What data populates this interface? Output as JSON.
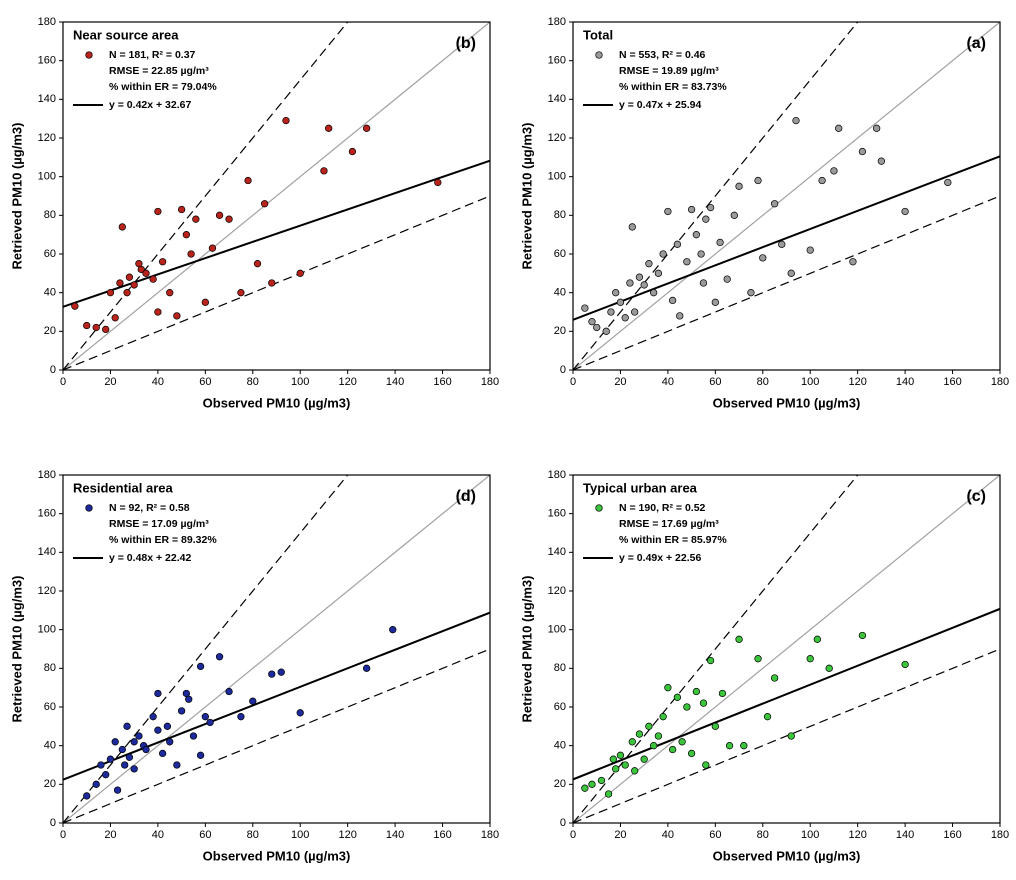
{
  "chart_data": [
    {
      "type": "scatter",
      "title": "Near source area",
      "panel_label": "(b)",
      "xlabel": "Observed PM10 (µg/m3)",
      "ylabel": "Retrieved PM10 (µg/m3)",
      "xlim": [
        0,
        180
      ],
      "ylim": [
        0,
        180
      ],
      "xticks": [
        0,
        20,
        40,
        60,
        80,
        100,
        120,
        140,
        160,
        180
      ],
      "yticks": [
        0,
        20,
        40,
        60,
        80,
        100,
        120,
        140,
        160,
        180
      ],
      "stats": [
        "N = 181, R² = 0.37",
        "RMSE = 22.85 µg/m³",
        "% within ER = 79.04%"
      ],
      "fit": {
        "slope": 0.42,
        "intercept": 32.67,
        "label": "y = 0.42x + 32.67"
      },
      "reference_lines": [
        {
          "slope": 1,
          "color": "#a0a0a0",
          "dash": "solid"
        },
        {
          "slope": 1.5,
          "color": "#000000",
          "dash": "dashed"
        },
        {
          "slope": 0.5,
          "color": "#000000",
          "dash": "dashed"
        }
      ],
      "series": [
        {
          "color": "#b8241c",
          "x": [
            5,
            10,
            14,
            18,
            20,
            22,
            24,
            25,
            27,
            28,
            30,
            32,
            33,
            35,
            38,
            40,
            40,
            42,
            45,
            48,
            50,
            52,
            54,
            56,
            60,
            63,
            66,
            70,
            75,
            78,
            82,
            85,
            88,
            94,
            100,
            110,
            112,
            122,
            128,
            158
          ],
          "values": [
            33,
            23,
            22,
            21,
            40,
            27,
            45,
            74,
            40,
            48,
            44,
            55,
            52,
            50,
            47,
            82,
            30,
            56,
            40,
            28,
            83,
            70,
            60,
            78,
            35,
            63,
            80,
            78,
            40,
            98,
            55,
            86,
            45,
            129,
            50,
            103,
            125,
            113,
            125,
            97
          ]
        }
      ]
    },
    {
      "type": "scatter",
      "title": "Total",
      "panel_label": "(a)",
      "xlabel": "Observed PM10 (µg/m3)",
      "ylabel": "Retrieved PM10 (µg/m3)",
      "xlim": [
        0,
        180
      ],
      "ylim": [
        0,
        180
      ],
      "xticks": [
        0,
        20,
        40,
        60,
        80,
        100,
        120,
        140,
        160,
        180
      ],
      "yticks": [
        0,
        20,
        40,
        60,
        80,
        100,
        120,
        140,
        160,
        180
      ],
      "stats": [
        "N = 553, R² = 0.46",
        "RMSE = 19.89 µg/m³",
        "% within ER = 83.73%"
      ],
      "fit": {
        "slope": 0.47,
        "intercept": 25.94,
        "label": "y = 0.47x + 25.94"
      },
      "reference_lines": [
        {
          "slope": 1,
          "color": "#a0a0a0",
          "dash": "solid"
        },
        {
          "slope": 1.5,
          "color": "#000000",
          "dash": "dashed"
        },
        {
          "slope": 0.5,
          "color": "#000000",
          "dash": "dashed"
        }
      ],
      "series": [
        {
          "color": "#9a9a9a",
          "x": [
            5,
            8,
            10,
            14,
            16,
            18,
            20,
            22,
            24,
            25,
            26,
            28,
            30,
            32,
            34,
            36,
            38,
            40,
            42,
            44,
            45,
            48,
            50,
            52,
            54,
            55,
            56,
            58,
            60,
            62,
            65,
            68,
            70,
            75,
            78,
            80,
            85,
            88,
            92,
            94,
            100,
            105,
            110,
            112,
            118,
            122,
            128,
            130,
            140,
            158
          ],
          "values": [
            32,
            25,
            22,
            20,
            30,
            40,
            35,
            27,
            45,
            74,
            30,
            48,
            44,
            55,
            40,
            50,
            60,
            82,
            36,
            65,
            28,
            56,
            83,
            70,
            60,
            45,
            78,
            84,
            35,
            66,
            47,
            80,
            95,
            40,
            98,
            58,
            86,
            65,
            50,
            129,
            62,
            98,
            103,
            125,
            56,
            113,
            125,
            108,
            82,
            97
          ]
        }
      ]
    },
    {
      "type": "scatter",
      "title": "Residential area",
      "panel_label": "(d)",
      "xlabel": "Observed PM10 (µg/m3)",
      "ylabel": "Retrieved PM10 (µg/m3)",
      "xlim": [
        0,
        180
      ],
      "ylim": [
        0,
        180
      ],
      "xticks": [
        0,
        20,
        40,
        60,
        80,
        100,
        120,
        140,
        160,
        180
      ],
      "yticks": [
        0,
        20,
        40,
        60,
        80,
        100,
        120,
        140,
        160,
        180
      ],
      "stats": [
        "N = 92, R² = 0.58",
        "RMSE = 17.09 µg/m³",
        "% within ER = 89.32%"
      ],
      "fit": {
        "slope": 0.48,
        "intercept": 22.42,
        "label": "y = 0.48x + 22.42"
      },
      "reference_lines": [
        {
          "slope": 1,
          "color": "#a0a0a0",
          "dash": "solid"
        },
        {
          "slope": 1.5,
          "color": "#000000",
          "dash": "dashed"
        },
        {
          "slope": 0.5,
          "color": "#000000",
          "dash": "dashed"
        }
      ],
      "series": [
        {
          "color": "#1c2a9c",
          "x": [
            10,
            14,
            16,
            18,
            20,
            22,
            23,
            25,
            26,
            27,
            28,
            30,
            30,
            32,
            34,
            35,
            38,
            40,
            40,
            42,
            44,
            45,
            48,
            50,
            52,
            53,
            55,
            58,
            58,
            60,
            62,
            66,
            70,
            75,
            80,
            88,
            92,
            100,
            128,
            139
          ],
          "values": [
            14,
            20,
            30,
            25,
            33,
            42,
            17,
            38,
            30,
            50,
            34,
            42,
            28,
            45,
            40,
            38,
            55,
            48,
            67,
            36,
            50,
            42,
            30,
            58,
            67,
            64,
            45,
            81,
            35,
            55,
            52,
            86,
            68,
            55,
            63,
            77,
            78,
            57,
            80,
            100
          ]
        }
      ]
    },
    {
      "type": "scatter",
      "title": "Typical urban area",
      "panel_label": "(c)",
      "xlabel": "Observed PM10 (µg/m3)",
      "ylabel": "Retrieved PM10 (µg/m3)",
      "xlim": [
        0,
        180
      ],
      "ylim": [
        0,
        180
      ],
      "xticks": [
        0,
        20,
        40,
        60,
        80,
        100,
        120,
        140,
        160,
        180
      ],
      "yticks": [
        0,
        20,
        40,
        60,
        80,
        100,
        120,
        140,
        160,
        180
      ],
      "stats": [
        "N = 190, R² = 0.52",
        "RMSE = 17.69 µg/m³",
        "% within ER = 85.97%"
      ],
      "fit": {
        "slope": 0.49,
        "intercept": 22.56,
        "label": "y = 0.49x + 22.56"
      },
      "reference_lines": [
        {
          "slope": 1,
          "color": "#a0a0a0",
          "dash": "solid"
        },
        {
          "slope": 1.5,
          "color": "#000000",
          "dash": "dashed"
        },
        {
          "slope": 0.5,
          "color": "#000000",
          "dash": "dashed"
        }
      ],
      "series": [
        {
          "color": "#3cc43c",
          "x": [
            5,
            8,
            12,
            15,
            17,
            18,
            20,
            22,
            25,
            26,
            28,
            30,
            32,
            34,
            36,
            38,
            40,
            42,
            44,
            46,
            48,
            50,
            52,
            55,
            56,
            58,
            60,
            63,
            66,
            70,
            72,
            78,
            82,
            85,
            92,
            100,
            103,
            108,
            122,
            140
          ],
          "values": [
            18,
            20,
            22,
            15,
            33,
            28,
            35,
            30,
            42,
            27,
            46,
            33,
            50,
            40,
            45,
            55,
            70,
            38,
            65,
            42,
            60,
            36,
            68,
            62,
            30,
            84,
            50,
            67,
            40,
            95,
            40,
            85,
            55,
            75,
            45,
            85,
            95,
            80,
            97,
            82
          ]
        }
      ]
    }
  ]
}
